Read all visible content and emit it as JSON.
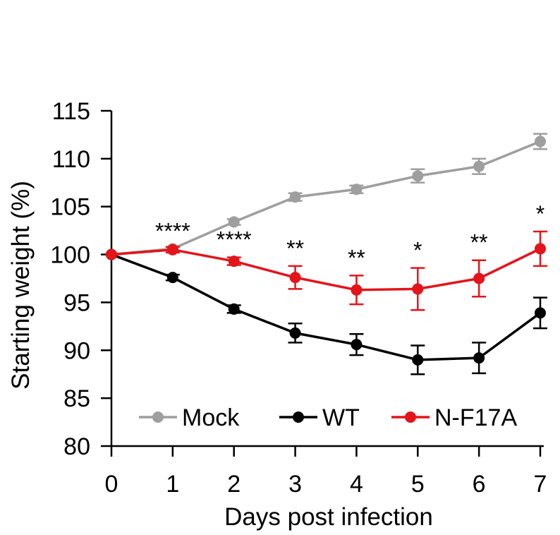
{
  "chart_data": {
    "type": "line",
    "title": "",
    "xlabel": "Days post infection",
    "ylabel": "Starting weight (%)",
    "xlim": [
      0,
      7
    ],
    "ylim": [
      80,
      115
    ],
    "x": [
      0,
      1,
      2,
      3,
      4,
      5,
      6,
      7
    ],
    "x_ticks": [
      "0",
      "1",
      "2",
      "3",
      "4",
      "5",
      "6",
      "7"
    ],
    "y_ticks": [
      "80",
      "85",
      "90",
      "95",
      "100",
      "105",
      "110",
      "115"
    ],
    "grid": false,
    "legend_position": "bottom",
    "series": [
      {
        "key": "mock",
        "name": "Mock",
        "color": "#9e9e9e",
        "values": [
          100,
          100.6,
          103.4,
          106.0,
          106.8,
          108.2,
          109.2,
          111.8
        ],
        "errors": [
          0,
          0.2,
          0.3,
          0.4,
          0.4,
          0.7,
          0.8,
          0.8
        ]
      },
      {
        "key": "wt",
        "name": "WT",
        "color": "#000000",
        "values": [
          100,
          97.6,
          94.3,
          91.8,
          90.6,
          89.0,
          89.2,
          93.9
        ],
        "errors": [
          0,
          0.3,
          0.4,
          1.0,
          1.1,
          1.5,
          1.6,
          1.6
        ]
      },
      {
        "key": "nf17a",
        "name": "N-F17A",
        "color": "#e4141b",
        "values": [
          100,
          100.5,
          99.3,
          97.6,
          96.3,
          96.4,
          97.5,
          100.6
        ],
        "errors": [
          0,
          0.3,
          0.4,
          1.2,
          1.5,
          2.2,
          1.9,
          1.8
        ]
      }
    ],
    "annotations": [
      {
        "x": 1,
        "text": "****"
      },
      {
        "x": 2,
        "text": "****"
      },
      {
        "x": 3,
        "text": "**"
      },
      {
        "x": 4,
        "text": "**"
      },
      {
        "x": 5,
        "text": "*"
      },
      {
        "x": 6,
        "text": "**"
      },
      {
        "x": 7,
        "text": "*"
      }
    ]
  }
}
